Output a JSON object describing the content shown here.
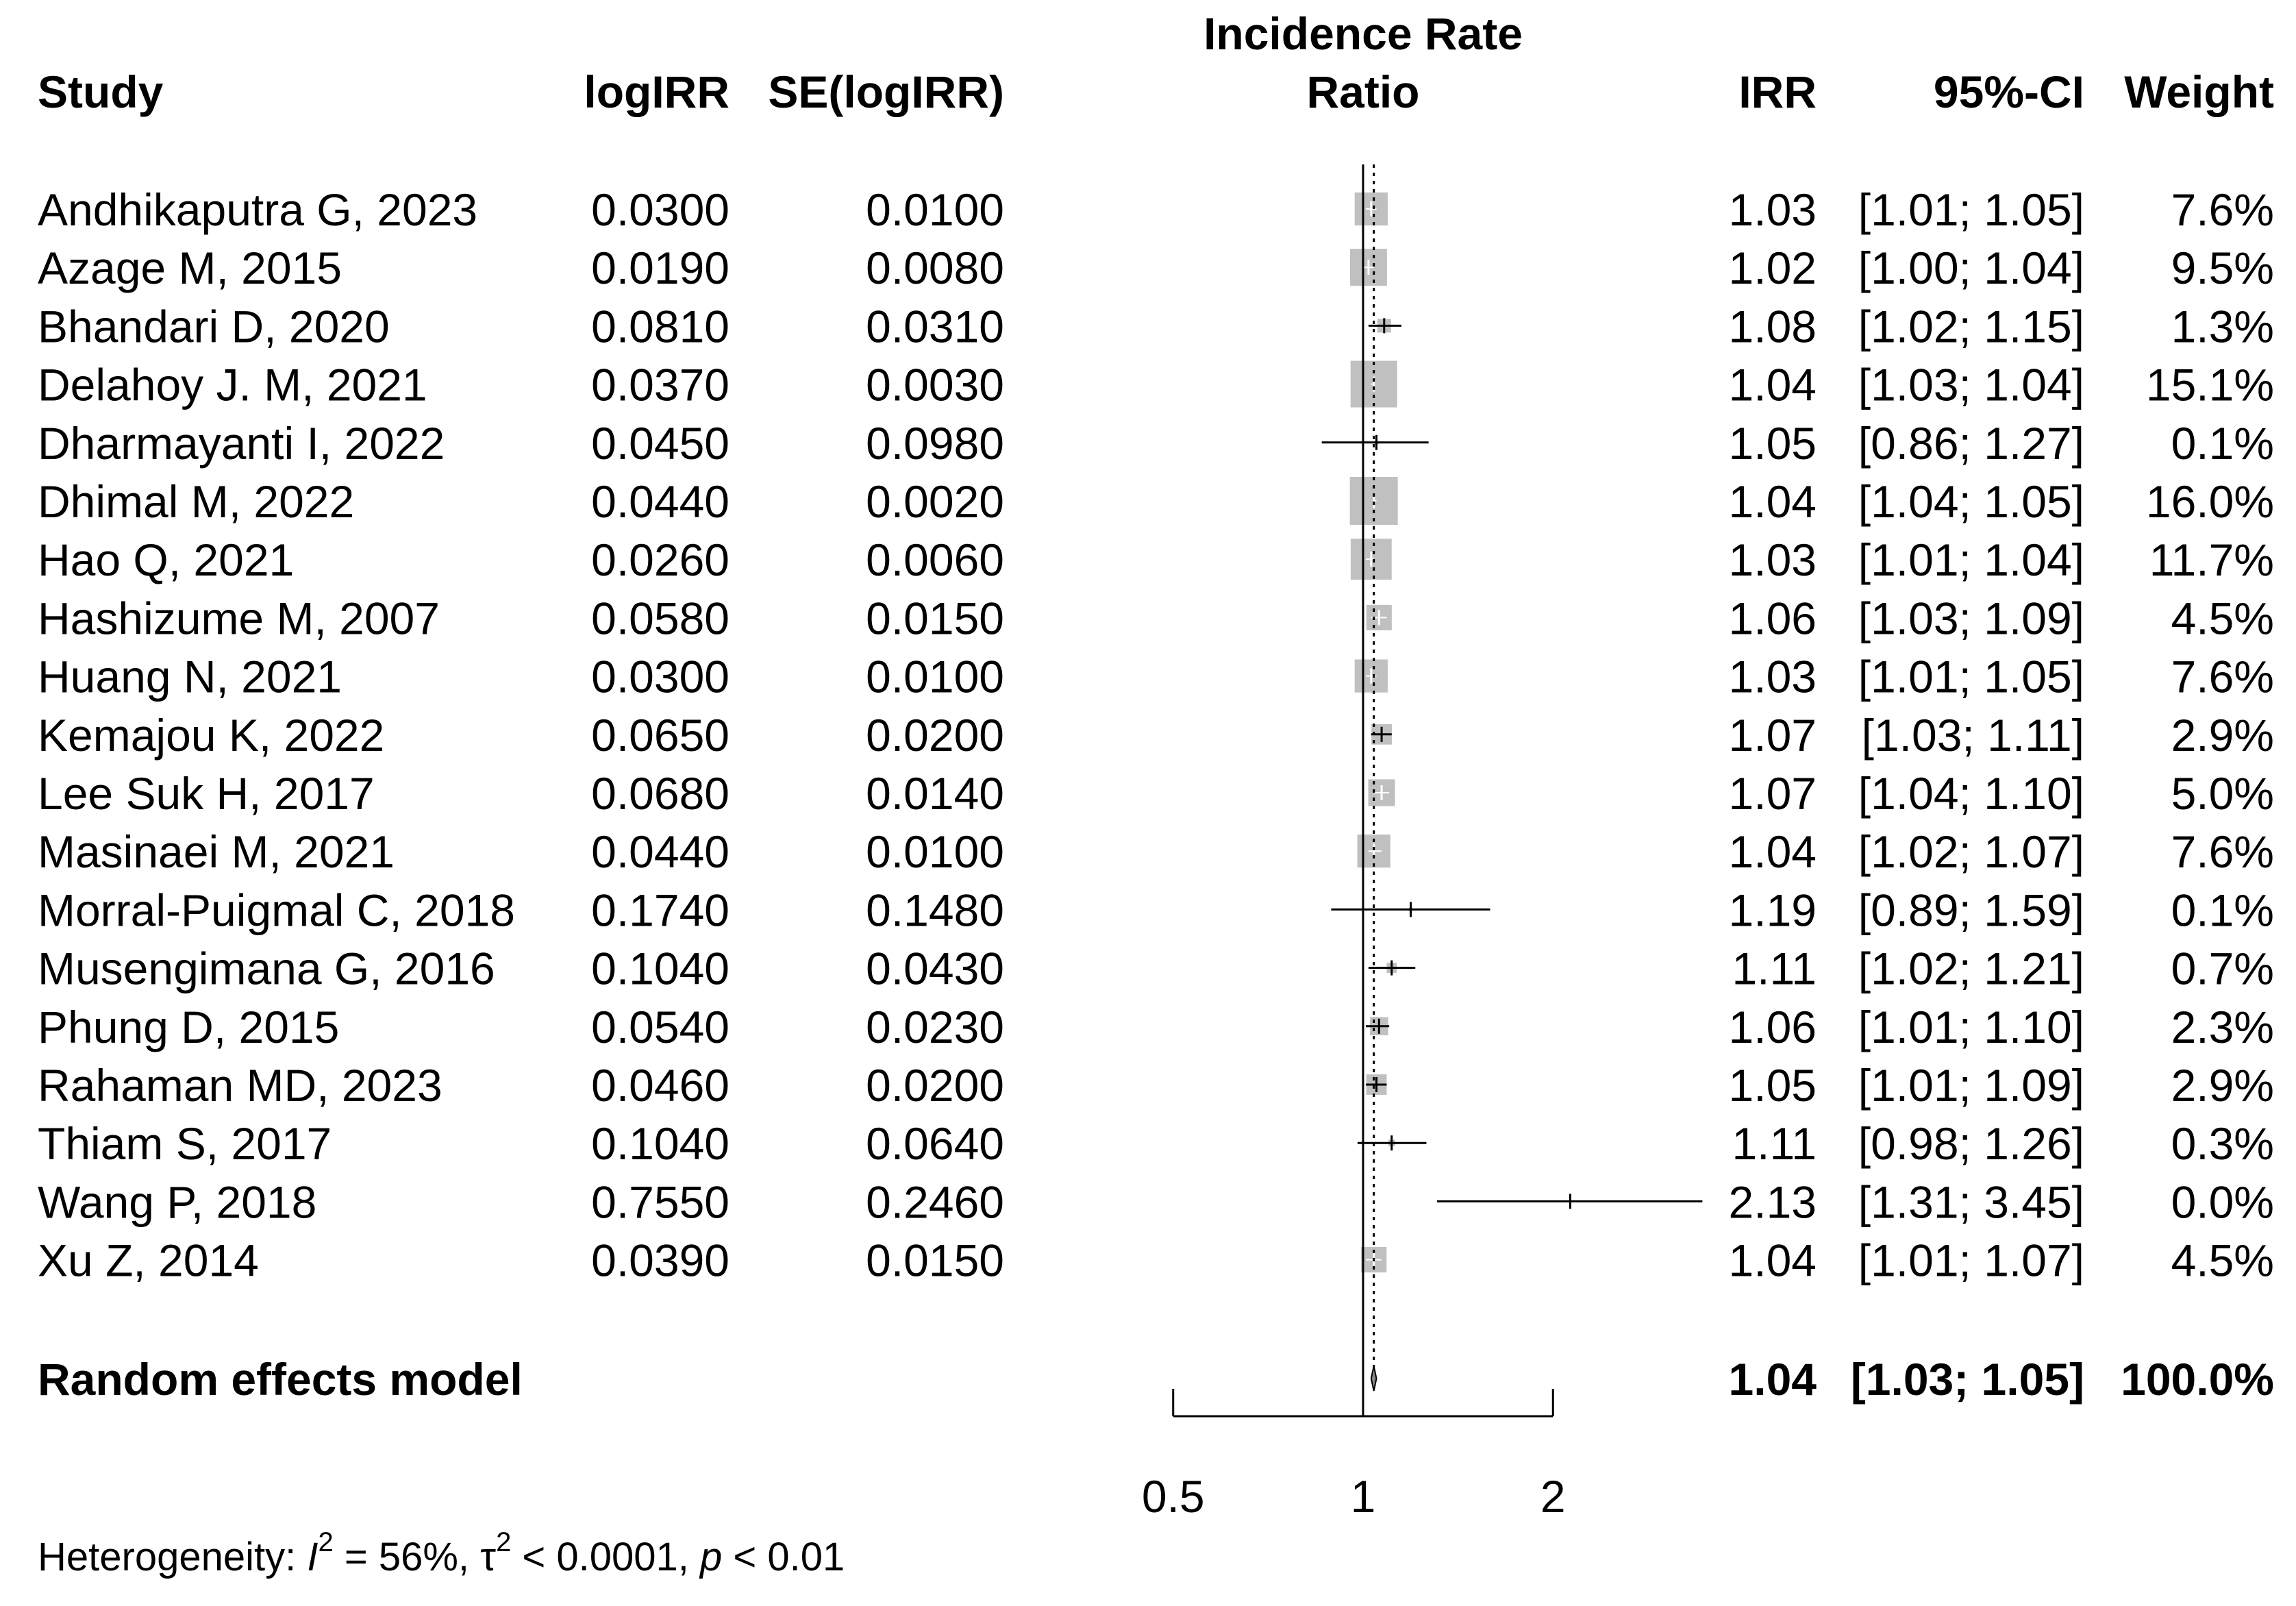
{
  "chart_data": {
    "type": "forest",
    "title": "Incidence Rate Ratio",
    "columns": {
      "study": "Study",
      "logirr": "logIRR",
      "se": "SE(logIRR)",
      "plot_title_line1": "Incidence Rate",
      "plot_title_line2": "Ratio",
      "irr": "IRR",
      "ci": "95%-CI",
      "weight": "Weight"
    },
    "studies": [
      {
        "study": "Andhikaputra G, 2023",
        "logirr": "0.0300",
        "se": "0.0100",
        "irr": "1.03",
        "ci": "[1.01; 1.05]",
        "weight": "7.6%",
        "est": 1.03,
        "lo": 1.01,
        "hi": 1.05,
        "w": 7.6
      },
      {
        "study": "Azage M, 2015",
        "logirr": "0.0190",
        "se": "0.0080",
        "irr": "1.02",
        "ci": "[1.00; 1.04]",
        "weight": "9.5%",
        "est": 1.02,
        "lo": 1.0,
        "hi": 1.04,
        "w": 9.5
      },
      {
        "study": "Bhandari D, 2020",
        "logirr": "0.0810",
        "se": "0.0310",
        "irr": "1.08",
        "ci": "[1.02; 1.15]",
        "weight": "1.3%",
        "est": 1.08,
        "lo": 1.02,
        "hi": 1.15,
        "w": 1.3
      },
      {
        "study": "Delahoy J. M, 2021",
        "logirr": "0.0370",
        "se": "0.0030",
        "irr": "1.04",
        "ci": "[1.03; 1.04]",
        "weight": "15.1%",
        "est": 1.04,
        "lo": 1.03,
        "hi": 1.04,
        "w": 15.1
      },
      {
        "study": "Dharmayanti I, 2022",
        "logirr": "0.0450",
        "se": "0.0980",
        "irr": "1.05",
        "ci": "[0.86; 1.27]",
        "weight": "0.1%",
        "est": 1.05,
        "lo": 0.86,
        "hi": 1.27,
        "w": 0.1
      },
      {
        "study": "Dhimal M, 2022",
        "logirr": "0.0440",
        "se": "0.0020",
        "irr": "1.04",
        "ci": "[1.04; 1.05]",
        "weight": "16.0%",
        "est": 1.04,
        "lo": 1.04,
        "hi": 1.05,
        "w": 16.0
      },
      {
        "study": "Hao Q, 2021",
        "logirr": "0.0260",
        "se": "0.0060",
        "irr": "1.03",
        "ci": "[1.01; 1.04]",
        "weight": "11.7%",
        "est": 1.03,
        "lo": 1.01,
        "hi": 1.04,
        "w": 11.7
      },
      {
        "study": "Hashizume M, 2007",
        "logirr": "0.0580",
        "se": "0.0150",
        "irr": "1.06",
        "ci": "[1.03; 1.09]",
        "weight": "4.5%",
        "est": 1.06,
        "lo": 1.03,
        "hi": 1.09,
        "w": 4.5
      },
      {
        "study": "Huang N, 2021",
        "logirr": "0.0300",
        "se": "0.0100",
        "irr": "1.03",
        "ci": "[1.01; 1.05]",
        "weight": "7.6%",
        "est": 1.03,
        "lo": 1.01,
        "hi": 1.05,
        "w": 7.6
      },
      {
        "study": "Kemajou K, 2022",
        "logirr": "0.0650",
        "se": "0.0200",
        "irr": "1.07",
        "ci": "[1.03; 1.11]",
        "weight": "2.9%",
        "est": 1.07,
        "lo": 1.03,
        "hi": 1.11,
        "w": 2.9
      },
      {
        "study": "Lee Suk H, 2017",
        "logirr": "0.0680",
        "se": "0.0140",
        "irr": "1.07",
        "ci": "[1.04; 1.10]",
        "weight": "5.0%",
        "est": 1.07,
        "lo": 1.04,
        "hi": 1.1,
        "w": 5.0
      },
      {
        "study": "Masinaei M, 2021",
        "logirr": "0.0440",
        "se": "0.0100",
        "irr": "1.04",
        "ci": "[1.02; 1.07]",
        "weight": "7.6%",
        "est": 1.04,
        "lo": 1.02,
        "hi": 1.07,
        "w": 7.6
      },
      {
        "study": "Morral-Puigmal  C,  2018",
        "logirr": "0.1740",
        "se": "0.1480",
        "irr": "1.19",
        "ci": "[0.89; 1.59]",
        "weight": "0.1%",
        "est": 1.19,
        "lo": 0.89,
        "hi": 1.59,
        "w": 0.1
      },
      {
        "study": "Musengimana G, 2016",
        "logirr": "0.1040",
        "se": "0.0430",
        "irr": "1.11",
        "ci": "[1.02; 1.21]",
        "weight": "0.7%",
        "est": 1.11,
        "lo": 1.02,
        "hi": 1.21,
        "w": 0.7
      },
      {
        "study": "Phung D, 2015",
        "logirr": "0.0540",
        "se": "0.0230",
        "irr": "1.06",
        "ci": "[1.01; 1.10]",
        "weight": "2.3%",
        "est": 1.06,
        "lo": 1.01,
        "hi": 1.1,
        "w": 2.3
      },
      {
        "study": "Rahaman MD, 2023",
        "logirr": "0.0460",
        "se": "0.0200",
        "irr": "1.05",
        "ci": "[1.01; 1.09]",
        "weight": "2.9%",
        "est": 1.05,
        "lo": 1.01,
        "hi": 1.09,
        "w": 2.9
      },
      {
        "study": "Thiam S, 2017",
        "logirr": "0.1040",
        "se": "0.0640",
        "irr": "1.11",
        "ci": "[0.98; 1.26]",
        "weight": "0.3%",
        "est": 1.11,
        "lo": 0.98,
        "hi": 1.26,
        "w": 0.3
      },
      {
        "study": "Wang P, 2018",
        "logirr": "0.7550",
        "se": "0.2460",
        "irr": "2.13",
        "ci": "[1.31; 3.45]",
        "weight": "0.0%",
        "est": 2.13,
        "lo": 1.31,
        "hi": 3.45,
        "w": 0.0
      },
      {
        "study": "Xu Z, 2014",
        "logirr": "0.0390",
        "se": "0.0150",
        "irr": "1.04",
        "ci": "[1.01; 1.07]",
        "weight": "4.5%",
        "est": 1.04,
        "lo": 1.01,
        "hi": 1.07,
        "w": 4.5
      }
    ],
    "summary": {
      "label": "Random effects model",
      "irr": "1.04",
      "ci": "[1.03; 1.05]",
      "weight": "100.0%",
      "est": 1.04,
      "lo": 1.03,
      "hi": 1.05
    },
    "xaxis": {
      "scale": "log",
      "ticks": [
        0.5,
        1,
        2
      ],
      "tick_labels": [
        "0.5",
        "1",
        "2"
      ],
      "range": [
        0.5,
        2
      ],
      "reference_line": 1
    },
    "heterogeneity": {
      "prefix": "Heterogeneity: ",
      "i2_symbol": "I",
      "i2_value": " = 56%, ",
      "tau_symbol": "τ",
      "tau_value": " < 0.0001, ",
      "p_symbol": "p",
      "p_value": " < 0.01"
    },
    "colors": {
      "square": "#c0c0c0",
      "line": "#000000",
      "text": "#000000"
    }
  }
}
